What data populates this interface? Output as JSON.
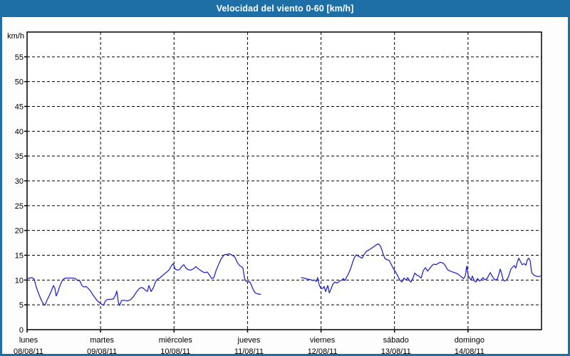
{
  "window": {
    "title": "Velocidad del viento 0-60 [km/h]"
  },
  "colors": {
    "chrome_blue": "#1d6fa5",
    "panel_background": "#fdfdfd",
    "plot_background": "#ffffff",
    "axis_and_grid": "#000000",
    "series_line": "#2626cc",
    "title_text": "#ffffff",
    "label_text": "#000000"
  },
  "chart_data": {
    "type": "line",
    "title": "Velocidad del viento 0-60 [km/h]",
    "ylabel": "km/h",
    "ylim": [
      0,
      60
    ],
    "ytick_step": 5,
    "yticks": [
      55,
      50,
      45,
      40,
      35,
      30,
      25,
      20,
      15,
      10,
      5,
      0
    ],
    "grid": "dashed",
    "legend": "none",
    "x_unit": "hours since lunes 08/08/11 00:00",
    "xlim": [
      0,
      168
    ],
    "x_categories": [
      {
        "day": "lunes",
        "date": "08/08/11",
        "hour": 0
      },
      {
        "day": "martes",
        "date": "09/08/11",
        "hour": 24
      },
      {
        "day": "miércoles",
        "date": "10/08/11",
        "hour": 48
      },
      {
        "day": "jueves",
        "date": "11/08/11",
        "hour": 72
      },
      {
        "day": "viernes",
        "date": "12/08/11",
        "hour": 96
      },
      {
        "day": "sábado",
        "date": "13/08/11",
        "hour": 120
      },
      {
        "day": "domingo",
        "date": "14/08/11",
        "hour": 144
      }
    ],
    "series": [
      {
        "name": "velocidad del viento",
        "color": "#2626cc",
        "segments": [
          [
            [
              0.0,
              10.3
            ],
            [
              0.9,
              10.4
            ],
            [
              1.6,
              10.5
            ],
            [
              2.3,
              10.2
            ],
            [
              3.0,
              8.6
            ],
            [
              3.7,
              7.4
            ],
            [
              4.4,
              6.3
            ],
            [
              5.1,
              5.4
            ],
            [
              5.8,
              4.9
            ],
            [
              6.5,
              5.9
            ],
            [
              7.2,
              6.8
            ],
            [
              7.9,
              7.8
            ],
            [
              8.6,
              8.9
            ],
            [
              9.1,
              8.3
            ],
            [
              9.5,
              6.8
            ],
            [
              10.0,
              7.5
            ],
            [
              10.7,
              8.8
            ],
            [
              11.4,
              9.8
            ],
            [
              12.1,
              10.3
            ],
            [
              13.0,
              10.4
            ],
            [
              14.0,
              10.4
            ],
            [
              14.9,
              10.4
            ],
            [
              15.8,
              10.3
            ],
            [
              16.5,
              9.9
            ],
            [
              17.2,
              9.9
            ],
            [
              17.9,
              8.9
            ],
            [
              18.6,
              8.6
            ],
            [
              19.3,
              8.7
            ],
            [
              20.0,
              8.3
            ],
            [
              20.7,
              7.8
            ],
            [
              21.4,
              7.1
            ],
            [
              22.1,
              6.5
            ],
            [
              22.8,
              5.9
            ],
            [
              23.5,
              5.5
            ],
            [
              24.2,
              5.2
            ],
            [
              24.9,
              4.9
            ],
            [
              25.6,
              5.8
            ],
            [
              26.3,
              6.1
            ],
            [
              27.2,
              6.1
            ],
            [
              28.2,
              6.2
            ],
            [
              28.9,
              7.0
            ],
            [
              29.3,
              7.8
            ],
            [
              29.8,
              5.5
            ],
            [
              30.2,
              4.9
            ],
            [
              30.9,
              5.9
            ],
            [
              31.9,
              5.9
            ],
            [
              32.8,
              5.8
            ],
            [
              33.7,
              6.0
            ],
            [
              34.7,
              6.6
            ],
            [
              35.6,
              7.5
            ],
            [
              36.5,
              8.2
            ],
            [
              37.2,
              8.5
            ],
            [
              37.9,
              8.4
            ],
            [
              38.6,
              8.0
            ],
            [
              39.3,
              7.7
            ],
            [
              39.8,
              8.9
            ],
            [
              40.5,
              7.7
            ],
            [
              41.2,
              8.4
            ],
            [
              41.9,
              9.6
            ],
            [
              42.6,
              10.2
            ],
            [
              43.5,
              10.5
            ],
            [
              44.4,
              11.0
            ],
            [
              45.4,
              11.5
            ],
            [
              46.3,
              12.0
            ],
            [
              47.2,
              12.9
            ],
            [
              47.7,
              13.3
            ],
            [
              48.4,
              12.2
            ],
            [
              49.1,
              12.0
            ],
            [
              49.8,
              12.1
            ],
            [
              50.5,
              12.7
            ],
            [
              51.2,
              13.1
            ],
            [
              51.9,
              12.4
            ],
            [
              52.6,
              12.1
            ],
            [
              53.5,
              12.0
            ],
            [
              54.4,
              12.3
            ],
            [
              55.1,
              12.7
            ],
            [
              56.1,
              12.2
            ],
            [
              57.0,
              11.8
            ],
            [
              57.9,
              11.5
            ],
            [
              58.9,
              11.6
            ],
            [
              59.6,
              11.0
            ],
            [
              60.3,
              10.3
            ],
            [
              61.0,
              10.5
            ],
            [
              61.7,
              11.9
            ],
            [
              62.6,
              13.2
            ],
            [
              63.5,
              14.4
            ],
            [
              64.4,
              15.1
            ],
            [
              65.4,
              15.2
            ],
            [
              66.1,
              15.3
            ],
            [
              67.0,
              15.0
            ],
            [
              67.9,
              14.6
            ],
            [
              68.6,
              13.6
            ],
            [
              69.3,
              13.0
            ],
            [
              70.0,
              12.7
            ],
            [
              70.5,
              12.4
            ],
            [
              71.0,
              10.4
            ],
            [
              71.4,
              9.8
            ],
            [
              72.1,
              9.6
            ],
            [
              72.6,
              9.7
            ],
            [
              73.1,
              9.2
            ],
            [
              73.8,
              8.1
            ],
            [
              74.5,
              7.4
            ],
            [
              75.4,
              7.2
            ],
            [
              76.3,
              7.1
            ]
          ],
          [
            [
              89.6,
              10.5
            ],
            [
              90.5,
              10.4
            ],
            [
              91.4,
              10.2
            ],
            [
              92.4,
              10.1
            ],
            [
              93.3,
              9.9
            ],
            [
              94.0,
              10.0
            ],
            [
              94.5,
              9.7
            ],
            [
              94.9,
              10.5
            ],
            [
              95.4,
              9.0
            ],
            [
              95.9,
              8.4
            ],
            [
              96.6,
              8.3
            ],
            [
              97.0,
              8.7
            ],
            [
              97.5,
              7.7
            ],
            [
              98.2,
              8.9
            ],
            [
              98.7,
              7.4
            ],
            [
              99.4,
              8.4
            ],
            [
              99.8,
              9.1
            ],
            [
              100.5,
              9.6
            ],
            [
              101.2,
              9.4
            ],
            [
              102.1,
              9.8
            ],
            [
              102.8,
              10.0
            ],
            [
              103.3,
              10.3
            ],
            [
              103.8,
              9.9
            ],
            [
              104.2,
              10.4
            ],
            [
              104.9,
              11.2
            ],
            [
              105.6,
              12.2
            ],
            [
              106.3,
              13.5
            ],
            [
              106.8,
              14.4
            ],
            [
              107.5,
              15.1
            ],
            [
              108.2,
              14.8
            ],
            [
              108.9,
              14.6
            ],
            [
              109.4,
              14.4
            ],
            [
              110.1,
              15.2
            ],
            [
              110.8,
              15.8
            ],
            [
              111.5,
              16.0
            ],
            [
              112.2,
              16.3
            ],
            [
              112.9,
              16.6
            ],
            [
              113.6,
              16.9
            ],
            [
              114.3,
              17.2
            ],
            [
              114.7,
              17.3
            ],
            [
              115.4,
              16.9
            ],
            [
              116.1,
              15.6
            ],
            [
              116.8,
              14.4
            ],
            [
              117.5,
              14.1
            ],
            [
              118.2,
              14.0
            ],
            [
              118.9,
              13.2
            ],
            [
              119.6,
              12.3
            ],
            [
              120.3,
              11.7
            ],
            [
              121.0,
              10.9
            ],
            [
              121.7,
              10.0
            ],
            [
              122.4,
              9.6
            ],
            [
              123.1,
              10.4
            ],
            [
              123.8,
              10.0
            ],
            [
              124.3,
              10.5
            ],
            [
              125.0,
              9.8
            ],
            [
              125.4,
              9.6
            ],
            [
              126.1,
              10.5
            ],
            [
              126.6,
              11.4
            ],
            [
              127.3,
              11.0
            ],
            [
              128.0,
              10.8
            ],
            [
              128.7,
              10.4
            ],
            [
              129.4,
              11.9
            ],
            [
              130.1,
              12.5
            ],
            [
              130.8,
              11.8
            ],
            [
              131.5,
              12.3
            ],
            [
              132.2,
              12.9
            ],
            [
              132.9,
              13.2
            ],
            [
              133.6,
              13.1
            ],
            [
              134.3,
              13.4
            ],
            [
              135.0,
              13.6
            ],
            [
              135.9,
              13.4
            ],
            [
              136.6,
              12.9
            ],
            [
              137.3,
              12.1
            ],
            [
              138.2,
              11.8
            ],
            [
              139.1,
              11.6
            ],
            [
              140.1,
              11.4
            ],
            [
              141.0,
              11.1
            ],
            [
              141.9,
              10.6
            ],
            [
              142.6,
              10.3
            ],
            [
              143.1,
              10.8
            ],
            [
              143.6,
              12.8
            ],
            [
              144.0,
              11.0
            ],
            [
              144.5,
              10.4
            ],
            [
              145.0,
              10.0
            ],
            [
              145.4,
              10.8
            ],
            [
              146.1,
              9.8
            ],
            [
              146.6,
              9.6
            ],
            [
              147.1,
              10.3
            ],
            [
              147.8,
              9.8
            ],
            [
              148.2,
              10.0
            ],
            [
              148.9,
              10.5
            ],
            [
              149.4,
              10.1
            ],
            [
              150.1,
              10.2
            ],
            [
              150.8,
              11.0
            ],
            [
              151.3,
              11.5
            ],
            [
              151.7,
              11.0
            ],
            [
              152.4,
              10.3
            ],
            [
              152.9,
              10.0
            ],
            [
              153.6,
              10.2
            ],
            [
              154.1,
              11.3
            ],
            [
              154.5,
              12.2
            ],
            [
              155.0,
              11.3
            ],
            [
              155.5,
              10.0
            ],
            [
              155.9,
              9.8
            ],
            [
              156.6,
              10.0
            ],
            [
              157.3,
              10.8
            ],
            [
              158.0,
              12.2
            ],
            [
              158.7,
              12.7
            ],
            [
              159.2,
              12.9
            ],
            [
              159.6,
              12.4
            ],
            [
              160.1,
              13.6
            ],
            [
              160.6,
              14.4
            ],
            [
              161.0,
              13.9
            ],
            [
              161.7,
              13.1
            ],
            [
              162.4,
              13.3
            ],
            [
              162.9,
              13.0
            ],
            [
              163.4,
              14.1
            ],
            [
              163.8,
              14.4
            ],
            [
              164.3,
              13.9
            ],
            [
              164.8,
              11.5
            ],
            [
              165.5,
              11.0
            ],
            [
              166.2,
              10.8
            ],
            [
              166.9,
              10.7
            ],
            [
              167.6,
              10.8
            ]
          ]
        ]
      }
    ]
  }
}
